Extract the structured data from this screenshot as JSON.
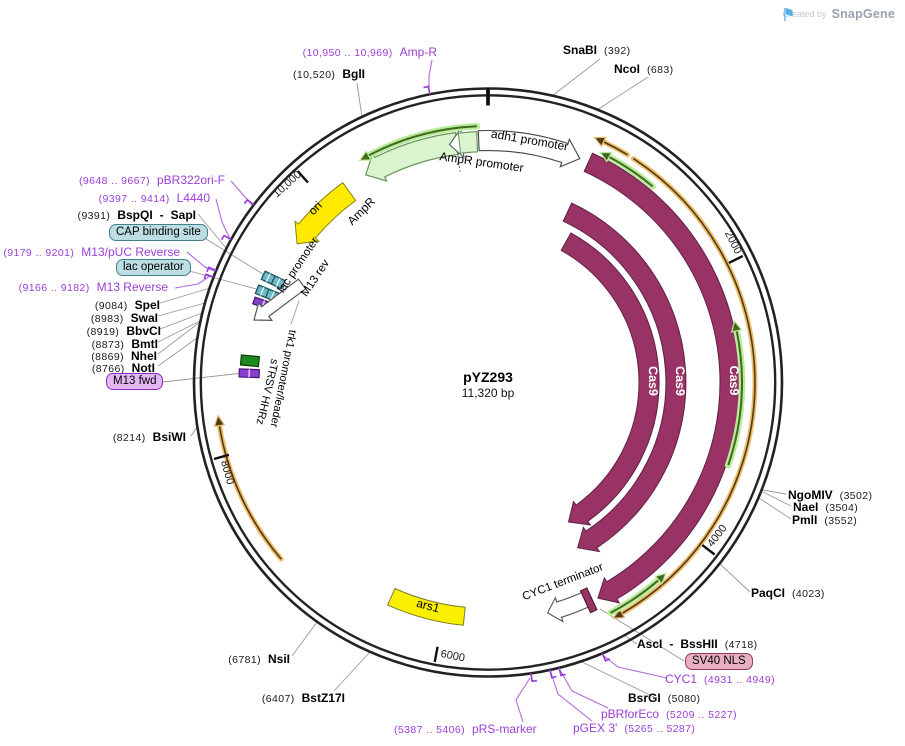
{
  "watermark": {
    "created_by": "Created by",
    "brand": "SnapGene"
  },
  "plasmid": {
    "name": "pYZ293",
    "size": "11,320 bp"
  },
  "ticks": {
    "t2000": "2000",
    "t4000": "4000",
    "t6000": "6000",
    "t8000": "8000",
    "t10000": "10,000"
  },
  "sites": {
    "snabi": {
      "name": "SnaBI",
      "pos": "(392)"
    },
    "ncoi": {
      "name": "NcoI",
      "pos": "(683)"
    },
    "bgli": {
      "pos": "(10,520)",
      "name": "BglI"
    },
    "ngomiv": {
      "name": "NgoMIV",
      "pos": "(3502)"
    },
    "naei": {
      "name": "NaeI",
      "pos": "(3504)"
    },
    "pmli": {
      "name": "PmlI",
      "pos": "(3552)"
    },
    "paqci": {
      "name": "PaqCI",
      "pos": "(4023)"
    },
    "asci_bsshii": {
      "name": "AscI",
      "sep": "-",
      "name2": "BssHII",
      "pos": "(4718)"
    },
    "bsrgi": {
      "name": "BsrGI",
      "pos": "(5080)"
    },
    "bstz17i": {
      "pos": "(6407)",
      "name": "BstZ17I"
    },
    "nsii": {
      "pos": "(6781)",
      "name": "NsiI"
    },
    "bsiwi": {
      "pos": "(8214)",
      "name": "BsiWI"
    },
    "noti": {
      "pos": "(8766)",
      "name": "NotI"
    },
    "nhei": {
      "pos": "(8869)",
      "name": "NheI"
    },
    "bmti": {
      "pos": "(8873)",
      "name": "BmtI"
    },
    "bbvci": {
      "pos": "(8919)",
      "name": "BbvCI"
    },
    "swai": {
      "pos": "(8983)",
      "name": "SwaI"
    },
    "spei": {
      "pos": "(9084)",
      "name": "SpeI"
    },
    "bspqi_sapi": {
      "pos": "(9391)",
      "name": "BspQI",
      "sep": "-",
      "name2": "SapI"
    }
  },
  "primers": {
    "amp_r": {
      "range": "(10,950 .. 10,969)",
      "name": "Amp-R"
    },
    "pbr322ori_f": {
      "range": "(9648 .. 9667)",
      "name": "pBR322ori-F"
    },
    "l4440": {
      "range": "(9397 .. 9414)",
      "name": "L4440"
    },
    "m13_puc_reverse": {
      "range": "(9179 .. 9201)",
      "name": "M13/pUC Reverse"
    },
    "m13_reverse": {
      "range": "(9166 .. 9182)",
      "name": "M13 Reverse"
    },
    "prs_marker": {
      "range": "(5387 .. 5406)",
      "name": "pRS-marker"
    },
    "pgex_3": {
      "name": "pGEX 3'",
      "range": "(5265 .. 5287)"
    },
    "pbrforeco": {
      "name": "pBRforEco",
      "range": "(5209 .. 5227)"
    },
    "cyc1": {
      "name": "CYC1",
      "range": "(4931 .. 4949)"
    }
  },
  "boxed": {
    "cap": "CAP binding site",
    "lac_operator": "lac operator",
    "m13_fwd": "M13 fwd",
    "sv40_nls": "SV40 NLS"
  },
  "arcs": {
    "cas9": "Cas9",
    "ampr": "AmpR",
    "ampr_promoter": "AmpR promoter",
    "adh1_promoter": "adh1 promoter",
    "ori": "ori",
    "ars1": "ars1",
    "cyc1_terminator": "CYC1 terminator",
    "lac_promoter": "lac promoter",
    "m13_rev": "M13 rev",
    "trk1_promoter": "trk1 promoter/leader",
    "strsv_hhrz": "sTRSV HHRz"
  }
}
